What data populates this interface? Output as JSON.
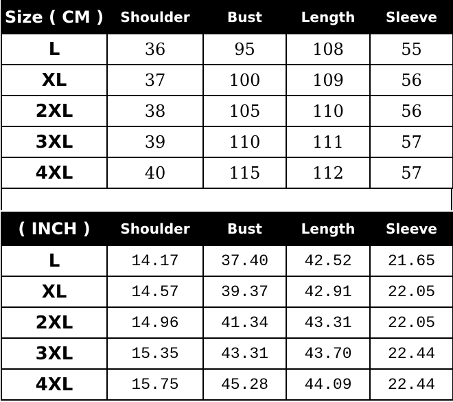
{
  "cm_table": {
    "headers": [
      "Size ( CM )",
      "Shoulder",
      "Bust",
      "Length",
      "Sleeve"
    ],
    "rows": [
      [
        "L",
        "36",
        "95",
        "108",
        "55"
      ],
      [
        "XL",
        "37",
        "100",
        "109",
        "56"
      ],
      [
        "2XL",
        "38",
        "105",
        "110",
        "56"
      ],
      [
        "3XL",
        "39",
        "110",
        "111",
        "57"
      ],
      [
        "4XL",
        "40",
        "115",
        "112",
        "57"
      ]
    ]
  },
  "inch_table": {
    "headers": [
      "( INCH )",
      "Shoulder",
      "Bust",
      "Length",
      "Sleeve"
    ],
    "rows": [
      [
        "L",
        "14.17",
        "37.40",
        "42.52",
        "21.65"
      ],
      [
        "XL",
        "14.57",
        "39.37",
        "42.91",
        "22.05"
      ],
      [
        "2XL",
        "14.96",
        "41.34",
        "43.31",
        "22.05"
      ],
      [
        "3XL",
        "15.35",
        "43.31",
        "43.70",
        "22.44"
      ],
      [
        "4XL",
        "15.75",
        "45.28",
        "44.09",
        "22.44"
      ]
    ]
  }
}
